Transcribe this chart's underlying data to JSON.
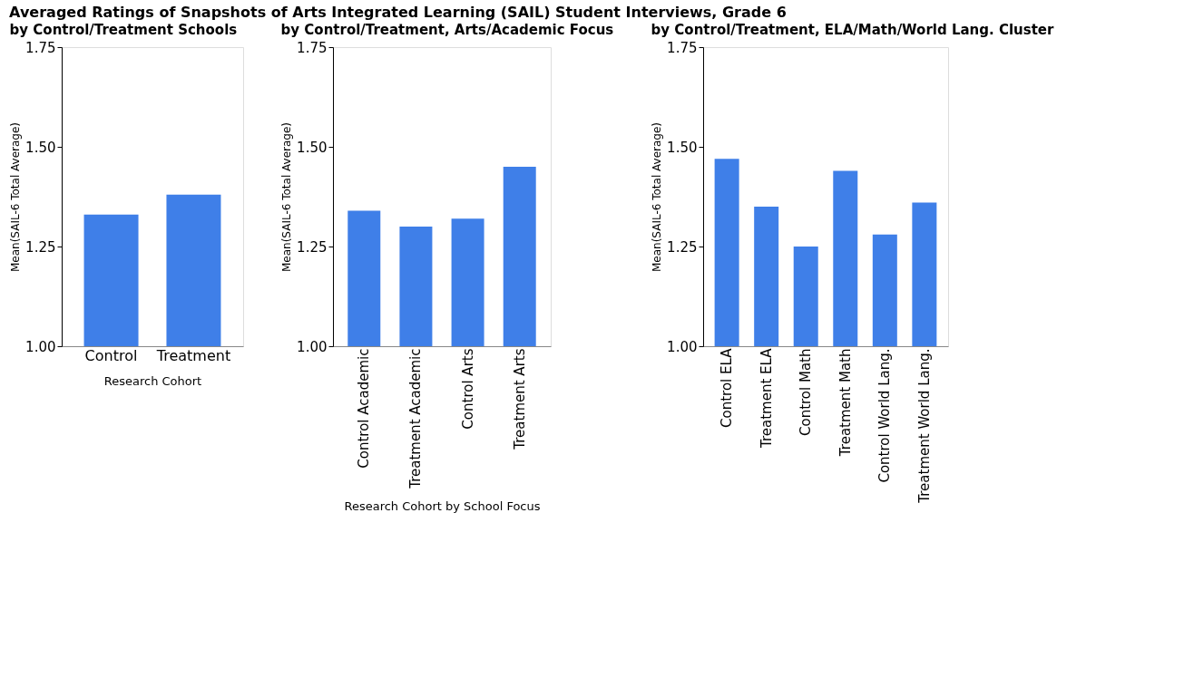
{
  "chart_data": [
    {
      "type": "bar",
      "title": "Averaged Ratings of Snapshots of Arts Integrated Learning (SAIL) Student Interviews, Grade 6",
      "subtitle": "by Control/Treatment Schools",
      "xlabel": "Research Cohort",
      "ylabel": "Mean(SAIL-6 Total Average)",
      "categories": [
        "Control",
        "Treatment"
      ],
      "values": [
        1.33,
        1.38
      ],
      "color": "#3f7fe8",
      "ylim": [
        1.0,
        1.75
      ],
      "yticks": [
        {
          "value": 1.0,
          "label": "1.00"
        },
        {
          "value": 1.25,
          "label": "1.25"
        },
        {
          "value": 1.5,
          "label": "1.50"
        },
        {
          "value": 1.75,
          "label": "1.75"
        }
      ],
      "grid": false
    },
    {
      "type": "bar",
      "subtitle": "by Control/Treatment, Arts/Academic Focus",
      "xlabel": "Research Cohort by School Focus",
      "ylabel": "Mean(SAIL-6 Total Average)",
      "categories": [
        "Control Academic",
        "Treatment Academic",
        "Control Arts",
        "Treatment Arts"
      ],
      "values": [
        1.34,
        1.3,
        1.32,
        1.45
      ],
      "color": "#3f7fe8",
      "ylim": [
        1.0,
        1.75
      ],
      "yticks": [
        {
          "value": 1.0,
          "label": "1.00"
        },
        {
          "value": 1.25,
          "label": "1.25"
        },
        {
          "value": 1.5,
          "label": "1.50"
        },
        {
          "value": 1.75,
          "label": "1.75"
        }
      ],
      "grid": false
    },
    {
      "type": "bar",
      "subtitle": "by Control/Treatment, ELA/Math/World Lang. Cluster",
      "ylabel": "Mean(SAIL-6 Total Average)",
      "categories": [
        "Control ELA",
        "Treatment ELA",
        "Control Math",
        "Treatment Math",
        "Control World Lang.",
        "Treatment World Lang."
      ],
      "values": [
        1.47,
        1.35,
        1.25,
        1.44,
        1.28,
        1.36
      ],
      "color": "#3f7fe8",
      "ylim": [
        1.0,
        1.75
      ],
      "yticks": [
        {
          "value": 1.0,
          "label": "1.00"
        },
        {
          "value": 1.25,
          "label": "1.25"
        },
        {
          "value": 1.5,
          "label": "1.50"
        },
        {
          "value": 1.75,
          "label": "1.75"
        }
      ],
      "grid": false
    }
  ]
}
